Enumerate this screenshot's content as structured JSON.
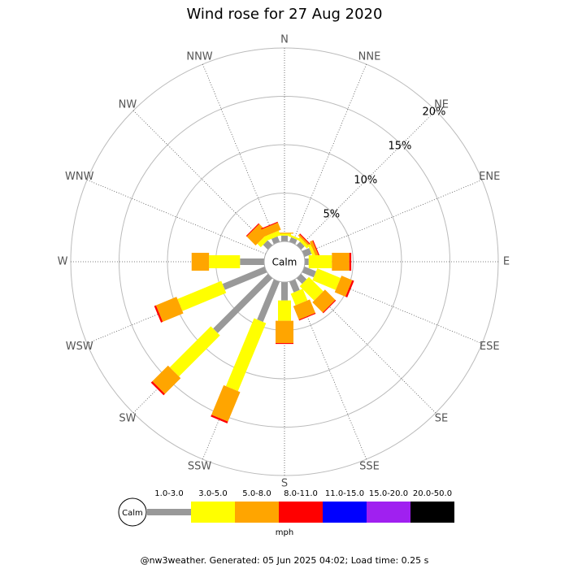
{
  "chart_data": {
    "type": "windrose",
    "title": "Wind rose for 27 Aug 2020",
    "categories": [
      "N",
      "NNE",
      "NE",
      "ENE",
      "E",
      "ESE",
      "SE",
      "SSE",
      "S",
      "SSW",
      "SW",
      "WSW",
      "W",
      "WNW",
      "NW",
      "NNW"
    ],
    "rlim": [
      0,
      20
    ],
    "rticks": [
      {
        "value": 5,
        "label": "5%"
      },
      {
        "value": 10,
        "label": "10%"
      },
      {
        "value": 15,
        "label": "15%"
      },
      {
        "value": 20,
        "label": "20%"
      }
    ],
    "calm_label": "Calm",
    "legend_unit": "mph",
    "series": [
      {
        "name": "1.0-3.0",
        "color": "#999999",
        "values": [
          0.6,
          0.5,
          0.5,
          0.8,
          0.4,
          1.3,
          0.8,
          1.2,
          1.9,
          4.5,
          8.0,
          4.7,
          2.5,
          0,
          0.7,
          0.6
        ]
      },
      {
        "name": "3.0-5.0",
        "color": "#ffff00",
        "values": [
          0.2,
          0.2,
          0.3,
          0.3,
          2.4,
          2.6,
          2.1,
          1.3,
          2.1,
          7.6,
          6.0,
          4.9,
          3.2,
          0,
          0.5,
          0.5
        ]
      },
      {
        "name": "5.0-8.0",
        "color": "#ffa500",
        "values": [
          0.1,
          0,
          0.2,
          0.3,
          1.8,
          1.2,
          1.5,
          1.5,
          2.3,
          3.3,
          2.3,
          2.3,
          1.8,
          0,
          1.3,
          0.8
        ]
      },
      {
        "name": "8.0-11.0",
        "color": "#ff0000",
        "values": [
          0,
          0,
          0.1,
          0.1,
          0.2,
          0.2,
          0.1,
          0.1,
          0.1,
          0.2,
          0.2,
          0.2,
          0,
          0,
          0.1,
          0.1
        ]
      },
      {
        "name": "11.0-15.0",
        "color": "#0000ff",
        "values": [
          0,
          0,
          0,
          0,
          0,
          0,
          0,
          0,
          0,
          0,
          0,
          0,
          0,
          0,
          0,
          0
        ]
      },
      {
        "name": "15.0-20.0",
        "color": "#a020f0",
        "values": [
          0,
          0,
          0,
          0,
          0,
          0,
          0,
          0,
          0,
          0,
          0,
          0,
          0,
          0,
          0,
          0
        ]
      },
      {
        "name": "20.0-50.0",
        "color": "#000000",
        "values": [
          0,
          0,
          0,
          0,
          0,
          0,
          0,
          0,
          0,
          0,
          0,
          0,
          0,
          0,
          0,
          0
        ]
      }
    ],
    "footer": "@nw3weather. Generated: 05 Jun 2025 04:02; Load time: 0.25 s"
  }
}
